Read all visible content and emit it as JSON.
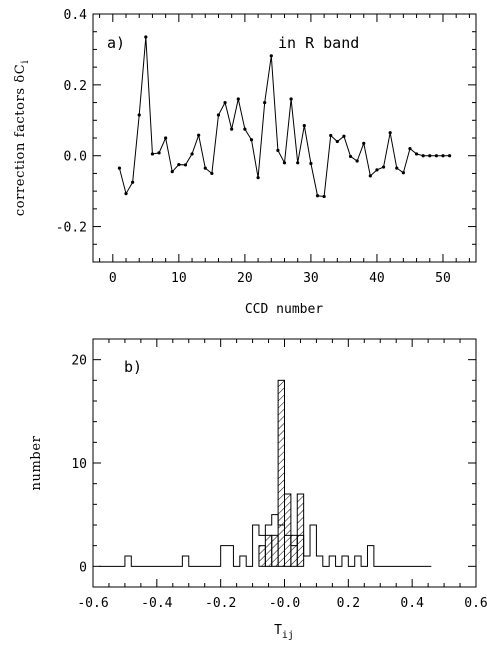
{
  "chart_data": [
    {
      "type": "line",
      "panel_label": "a)",
      "annotation": "in R band",
      "xlabel": "CCD number",
      "ylabel": "correction factors δC",
      "ylabel_subscript": "i",
      "xlim": [
        -3,
        55
      ],
      "ylim": [
        -0.3,
        0.4
      ],
      "xticks": [
        0,
        10,
        20,
        30,
        40,
        50
      ],
      "xtick_labels": [
        "0",
        "10",
        "20",
        "30",
        "40",
        "50"
      ],
      "yticks": [
        -0.2,
        0.0,
        0.2,
        0.4
      ],
      "ytick_labels": [
        "-0.2",
        "0.0",
        "0.2",
        "0.4"
      ],
      "x": [
        1,
        2,
        3,
        4,
        5,
        6,
        7,
        8,
        9,
        10,
        11,
        12,
        13,
        14,
        15,
        16,
        17,
        18,
        19,
        20,
        21,
        22,
        23,
        24,
        25,
        26,
        27,
        28,
        29,
        30,
        31,
        32,
        33,
        34,
        35,
        36,
        37,
        38,
        39,
        40,
        41,
        42,
        43,
        44,
        45,
        46,
        47,
        48,
        49,
        50,
        51
      ],
      "y": [
        -0.035,
        -0.107,
        -0.075,
        0.115,
        0.335,
        0.005,
        0.008,
        0.05,
        -0.045,
        -0.025,
        -0.026,
        0.005,
        0.058,
        -0.035,
        -0.05,
        0.115,
        0.15,
        0.075,
        0.16,
        0.075,
        0.045,
        -0.062,
        0.15,
        0.282,
        0.015,
        -0.02,
        0.16,
        -0.02,
        0.085,
        -0.022,
        -0.113,
        -0.115,
        0.057,
        0.04,
        0.055,
        -0.002,
        -0.015,
        0.035,
        -0.057,
        -0.04,
        -0.032,
        0.065,
        -0.035,
        -0.048,
        0.02,
        0.005,
        0.0,
        0.0,
        0.0,
        0.0,
        0.0
      ],
      "grid": false
    },
    {
      "type": "histogram",
      "panel_label": "b)",
      "xlabel": "T",
      "xlabel_subscript": "ij",
      "ylabel": "number",
      "xlim": [
        -0.6,
        0.6
      ],
      "ylim": [
        -2,
        22
      ],
      "xticks": [
        -0.6,
        -0.4,
        -0.2,
        0.0,
        0.2,
        0.4,
        0.6
      ],
      "xtick_labels": [
        "-0.6",
        "-0.4",
        "-0.2",
        "-0.0",
        "0.2",
        "0.4",
        "0.6"
      ],
      "yticks": [
        0,
        10,
        20
      ],
      "ytick_labels": [
        "0",
        "10",
        "20"
      ],
      "bin_width": 0.02,
      "series": [
        {
          "style": "outline",
          "bin_starts": [
            -0.58,
            -0.56,
            -0.54,
            -0.52,
            -0.5,
            -0.48,
            -0.46,
            -0.44,
            -0.42,
            -0.4,
            -0.38,
            -0.36,
            -0.34,
            -0.32,
            -0.3,
            -0.28,
            -0.26,
            -0.24,
            -0.22,
            -0.2,
            -0.18,
            -0.16,
            -0.14,
            -0.12,
            -0.1,
            -0.08,
            -0.06,
            -0.04,
            -0.02,
            0.0,
            0.02,
            0.04,
            0.06,
            0.08,
            0.1,
            0.12,
            0.14,
            0.16,
            0.18,
            0.2,
            0.22,
            0.24,
            0.26,
            0.28,
            0.3,
            0.32,
            0.34,
            0.36,
            0.38,
            0.4,
            0.42,
            0.44
          ],
          "counts": [
            0,
            0,
            0,
            0,
            1,
            0,
            0,
            0,
            0,
            0,
            0,
            0,
            0,
            1,
            0,
            0,
            0,
            0,
            0,
            2,
            2,
            0,
            1,
            0,
            4,
            3,
            4,
            5,
            4,
            3,
            2,
            3,
            1,
            4,
            1,
            0,
            1,
            0,
            1,
            0,
            1,
            0,
            2,
            0,
            0,
            0,
            0,
            0,
            0,
            0,
            0,
            0
          ]
        },
        {
          "style": "hatched",
          "bin_starts": [
            -0.08,
            -0.06,
            -0.04,
            -0.02,
            0.0,
            0.02,
            0.04
          ],
          "counts": [
            2,
            3,
            3,
            18,
            7,
            3,
            7
          ]
        }
      ],
      "grid": false
    }
  ]
}
